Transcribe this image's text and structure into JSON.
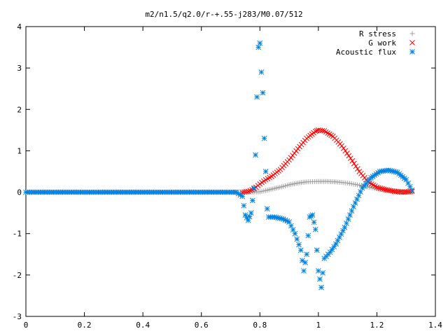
{
  "chart_data": {
    "type": "scatter",
    "title": "m2/n1.5/q2.0/r-+.55-j283/M0.07/512",
    "xlabel": "",
    "ylabel": "",
    "xlim": [
      0,
      1.4
    ],
    "ylim": [
      -3,
      4
    ],
    "x_ticks": [
      "0",
      "0.2",
      "0.4",
      "0.6",
      "0.8",
      "1",
      "1.2",
      "1.4"
    ],
    "y_ticks": [
      "-3",
      "-2",
      "-1",
      "0",
      "1",
      "2",
      "3",
      "4"
    ],
    "grid": false,
    "legend_position": "top-right",
    "series": [
      {
        "name": "R stress",
        "marker": "plus",
        "color": "#a0a0a0",
        "points": [
          [
            0.74,
            0.0
          ],
          [
            0.77,
            0.0
          ],
          [
            0.8,
            0.01
          ],
          [
            0.82,
            0.04
          ],
          [
            0.85,
            0.09
          ],
          [
            0.88,
            0.14
          ],
          [
            0.9,
            0.18
          ],
          [
            0.93,
            0.22
          ],
          [
            0.96,
            0.25
          ],
          [
            1.0,
            0.26
          ],
          [
            1.03,
            0.26
          ],
          [
            1.06,
            0.25
          ],
          [
            1.1,
            0.22
          ],
          [
            1.14,
            0.17
          ],
          [
            1.18,
            0.11
          ],
          [
            1.22,
            0.06
          ],
          [
            1.26,
            0.03
          ],
          [
            1.3,
            0.01
          ],
          [
            1.32,
            0.0
          ]
        ]
      },
      {
        "name": "G work",
        "marker": "cross",
        "color": "#ff0000",
        "points": [
          [
            0.74,
            0.0
          ],
          [
            0.76,
            0.02
          ],
          [
            0.78,
            0.08
          ],
          [
            0.8,
            0.2
          ],
          [
            0.82,
            0.3
          ],
          [
            0.84,
            0.38
          ],
          [
            0.87,
            0.55
          ],
          [
            0.9,
            0.78
          ],
          [
            0.93,
            1.05
          ],
          [
            0.96,
            1.3
          ],
          [
            0.99,
            1.47
          ],
          [
            1.0,
            1.5
          ],
          [
            1.02,
            1.48
          ],
          [
            1.05,
            1.35
          ],
          [
            1.08,
            1.12
          ],
          [
            1.11,
            0.82
          ],
          [
            1.14,
            0.5
          ],
          [
            1.17,
            0.25
          ],
          [
            1.2,
            0.12
          ],
          [
            1.23,
            0.06
          ],
          [
            1.26,
            0.02
          ],
          [
            1.29,
            0.0
          ],
          [
            1.32,
            0.02
          ]
        ]
      },
      {
        "name": "Acoustic flux",
        "marker": "asterisk",
        "color": "#0080e0",
        "points": [
          [
            0.72,
            0.0
          ],
          [
            0.74,
            -0.1
          ],
          [
            0.75,
            -0.55
          ],
          [
            0.76,
            -0.68
          ],
          [
            0.77,
            -0.5
          ],
          [
            0.78,
            0.1
          ],
          [
            0.785,
            0.9
          ],
          [
            0.79,
            2.3
          ],
          [
            0.795,
            3.5
          ],
          [
            0.8,
            3.6
          ],
          [
            0.805,
            2.9
          ],
          [
            0.81,
            2.4
          ],
          [
            0.815,
            1.3
          ],
          [
            0.82,
            0.5
          ],
          [
            0.825,
            -0.4
          ],
          [
            0.83,
            -0.6
          ],
          [
            0.85,
            -0.6
          ],
          [
            0.88,
            -0.65
          ],
          [
            0.9,
            -0.72
          ],
          [
            0.92,
            -1.0
          ],
          [
            0.94,
            -1.4
          ],
          [
            0.95,
            -1.9
          ],
          [
            0.96,
            -1.5
          ],
          [
            0.97,
            -0.6
          ],
          [
            0.98,
            -0.55
          ],
          [
            0.99,
            -0.9
          ],
          [
            1.0,
            -1.9
          ],
          [
            1.01,
            -2.3
          ],
          [
            1.02,
            -1.6
          ],
          [
            1.04,
            -1.45
          ],
          [
            1.06,
            -1.25
          ],
          [
            1.09,
            -0.85
          ],
          [
            1.12,
            -0.35
          ],
          [
            1.15,
            0.1
          ],
          [
            1.18,
            0.35
          ],
          [
            1.21,
            0.5
          ],
          [
            1.24,
            0.53
          ],
          [
            1.27,
            0.48
          ],
          [
            1.3,
            0.3
          ],
          [
            1.32,
            0.05
          ]
        ]
      }
    ]
  }
}
